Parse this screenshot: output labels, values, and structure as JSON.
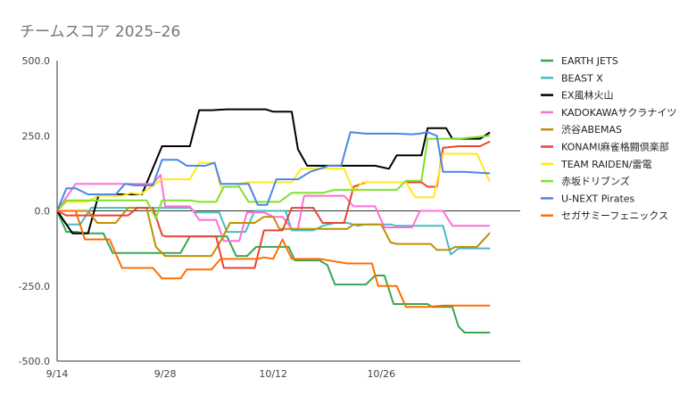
{
  "chart_data": {
    "type": "line",
    "title": "チームスコア 2025–26",
    "xlabel": "",
    "ylabel": "",
    "x_ticks": [
      "9/14",
      "9/28",
      "10/12",
      "10/26"
    ],
    "x_range": [
      0,
      30
    ],
    "ylim": [
      -500,
      500
    ],
    "y_ticks": [
      "500.0",
      "250.0",
      "0.0",
      "-250.0",
      "-500.0"
    ],
    "grid": false,
    "legend_position": "right",
    "series": [
      {
        "name": "EARTH JETS",
        "color": "#34a853",
        "points": [
          [
            0,
            0
          ],
          [
            0.6,
            -70
          ],
          [
            1.2,
            -70
          ],
          [
            2,
            -75
          ],
          [
            3,
            -75
          ],
          [
            3.6,
            -140
          ],
          [
            5,
            -140
          ],
          [
            8,
            -140
          ],
          [
            8.6,
            -85
          ],
          [
            11,
            -85
          ],
          [
            11.6,
            -150
          ],
          [
            12.3,
            -150
          ],
          [
            12.9,
            -120
          ],
          [
            14,
            -120
          ],
          [
            15,
            -120
          ],
          [
            15.4,
            -165
          ],
          [
            17,
            -165
          ],
          [
            17.5,
            -180
          ],
          [
            18,
            -245
          ],
          [
            20,
            -245
          ],
          [
            20.6,
            -215
          ],
          [
            21.2,
            -215
          ],
          [
            21.8,
            -310
          ],
          [
            24,
            -310
          ],
          [
            24.3,
            -320
          ],
          [
            25,
            -320
          ],
          [
            25.6,
            -320
          ],
          [
            26,
            -385
          ],
          [
            26.4,
            -405
          ],
          [
            28,
            -405
          ]
        ]
      },
      {
        "name": "BEAST X",
        "color": "#46bdc6",
        "points": [
          [
            0,
            0
          ],
          [
            0.6,
            -45
          ],
          [
            1.5,
            -45
          ],
          [
            2.2,
            10
          ],
          [
            8.6,
            10
          ],
          [
            9,
            -5
          ],
          [
            10.5,
            -5
          ],
          [
            11,
            -70
          ],
          [
            12.2,
            -70
          ],
          [
            12.8,
            0
          ],
          [
            14.8,
            0
          ],
          [
            15.2,
            -65
          ],
          [
            16.6,
            -65
          ],
          [
            17.2,
            -50
          ],
          [
            18,
            -40
          ],
          [
            18.8,
            -40
          ],
          [
            19.5,
            -50
          ],
          [
            20,
            -45
          ],
          [
            21.6,
            -45
          ],
          [
            22,
            -50
          ],
          [
            24,
            -50
          ],
          [
            25,
            -50
          ],
          [
            25.5,
            -145
          ],
          [
            26,
            -125
          ],
          [
            28,
            -125
          ]
        ]
      },
      {
        "name": "EX風林火山",
        "color": "#000000",
        "points": [
          [
            0,
            0
          ],
          [
            1,
            -75
          ],
          [
            2,
            -75
          ],
          [
            2.7,
            55
          ],
          [
            5.5,
            55
          ],
          [
            6.8,
            215
          ],
          [
            8.6,
            215
          ],
          [
            9.2,
            335
          ],
          [
            10,
            335
          ],
          [
            11,
            338
          ],
          [
            13.5,
            338
          ],
          [
            14,
            330
          ],
          [
            15.2,
            330
          ],
          [
            15.6,
            205
          ],
          [
            16.2,
            150
          ],
          [
            19,
            150
          ],
          [
            20.6,
            150
          ],
          [
            21.5,
            140
          ],
          [
            22,
            185
          ],
          [
            23.6,
            185
          ],
          [
            24,
            275
          ],
          [
            25.2,
            275
          ],
          [
            25.6,
            240
          ],
          [
            27.4,
            240
          ],
          [
            28,
            260
          ]
        ]
      },
      {
        "name": "KADOKAWAサクラナイツ",
        "color": "#ff6fd8",
        "points": [
          [
            0,
            0
          ],
          [
            0.6,
            45
          ],
          [
            1.2,
            90
          ],
          [
            6.2,
            90
          ],
          [
            6.7,
            120
          ],
          [
            7,
            15
          ],
          [
            8.6,
            15
          ],
          [
            9.2,
            -30
          ],
          [
            10.3,
            -30
          ],
          [
            10.8,
            -100
          ],
          [
            11.8,
            -100
          ],
          [
            12.3,
            -5
          ],
          [
            13.4,
            -5
          ],
          [
            14,
            -20
          ],
          [
            14.6,
            -20
          ],
          [
            15.2,
            -60
          ],
          [
            15.6,
            -60
          ],
          [
            16,
            50
          ],
          [
            18.6,
            50
          ],
          [
            19.2,
            15
          ],
          [
            20.6,
            15
          ],
          [
            21.2,
            -55
          ],
          [
            23,
            -55
          ],
          [
            23.5,
            0
          ],
          [
            25,
            0
          ],
          [
            25.6,
            -50
          ],
          [
            28,
            -50
          ]
        ]
      },
      {
        "name": "渋谷ABEMAS",
        "color": "#bf9000",
        "points": [
          [
            0,
            0
          ],
          [
            2,
            0
          ],
          [
            2.6,
            -40
          ],
          [
            3.8,
            -40
          ],
          [
            4.6,
            10
          ],
          [
            5.8,
            10
          ],
          [
            6.4,
            -120
          ],
          [
            7,
            -150
          ],
          [
            10,
            -150
          ],
          [
            10.6,
            -100
          ],
          [
            11.2,
            -40
          ],
          [
            12.8,
            -40
          ],
          [
            13.4,
            -20
          ],
          [
            14,
            -20
          ],
          [
            14.4,
            -60
          ],
          [
            17,
            -60
          ],
          [
            18,
            -60
          ],
          [
            18.8,
            -60
          ],
          [
            19.2,
            -45
          ],
          [
            21,
            -45
          ],
          [
            21.6,
            -105
          ],
          [
            22,
            -110
          ],
          [
            24.2,
            -110
          ],
          [
            24.6,
            -130
          ],
          [
            25.4,
            -130
          ],
          [
            25.8,
            -120
          ],
          [
            27.2,
            -120
          ],
          [
            28,
            -75
          ]
        ]
      },
      {
        "name": "KONAMI麻雀格闘倶楽部",
        "color": "#ea4335",
        "points": [
          [
            0,
            0
          ],
          [
            0.6,
            -15
          ],
          [
            1.2,
            -15
          ],
          [
            2,
            -15
          ],
          [
            4.6,
            -15
          ],
          [
            5.2,
            10
          ],
          [
            6.2,
            10
          ],
          [
            6.8,
            -80
          ],
          [
            7,
            -85
          ],
          [
            10.3,
            -85
          ],
          [
            10.8,
            -190
          ],
          [
            12.8,
            -190
          ],
          [
            13.4,
            -65
          ],
          [
            14.6,
            -65
          ],
          [
            15.2,
            10
          ],
          [
            16.6,
            10
          ],
          [
            17.2,
            -40
          ],
          [
            18.6,
            -40
          ],
          [
            19.2,
            80
          ],
          [
            20,
            95
          ],
          [
            23.6,
            95
          ],
          [
            24,
            80
          ],
          [
            24.6,
            80
          ],
          [
            25,
            210
          ],
          [
            26,
            215
          ],
          [
            27.4,
            215
          ],
          [
            28,
            230
          ]
        ]
      },
      {
        "name": "TEAM RAIDEN/雷電",
        "color": "#ffe81a",
        "points": [
          [
            0,
            0
          ],
          [
            0.6,
            30
          ],
          [
            1.2,
            30
          ],
          [
            2,
            30
          ],
          [
            2.6,
            50
          ],
          [
            4.2,
            50
          ],
          [
            4.8,
            60
          ],
          [
            5.4,
            55
          ],
          [
            6.8,
            105
          ],
          [
            8.6,
            105
          ],
          [
            9.2,
            160
          ],
          [
            10.2,
            160
          ],
          [
            10.6,
            80
          ],
          [
            11.6,
            80
          ],
          [
            12.2,
            95
          ],
          [
            15.2,
            95
          ],
          [
            15.8,
            140
          ],
          [
            18.6,
            140
          ],
          [
            19.2,
            65
          ],
          [
            19.8,
            95
          ],
          [
            22.6,
            95
          ],
          [
            23.2,
            45
          ],
          [
            24.4,
            45
          ],
          [
            25,
            190
          ],
          [
            26,
            190
          ],
          [
            27.2,
            190
          ],
          [
            28,
            100
          ]
        ]
      },
      {
        "name": "赤坂ドリブンズ",
        "color": "#7ee22b",
        "points": [
          [
            0,
            0
          ],
          [
            0.6,
            35
          ],
          [
            1.2,
            35
          ],
          [
            3.8,
            35
          ],
          [
            4.4,
            35
          ],
          [
            5.8,
            35
          ],
          [
            6.4,
            -25
          ],
          [
            6.8,
            35
          ],
          [
            8.6,
            35
          ],
          [
            9.2,
            30
          ],
          [
            10.3,
            30
          ],
          [
            10.8,
            80
          ],
          [
            11.8,
            80
          ],
          [
            12.4,
            30
          ],
          [
            14.4,
            30
          ],
          [
            15.2,
            60
          ],
          [
            16,
            60
          ],
          [
            17.2,
            60
          ],
          [
            18,
            70
          ],
          [
            18.6,
            70
          ],
          [
            19.6,
            70
          ],
          [
            22,
            70
          ],
          [
            22.6,
            100
          ],
          [
            23.6,
            100
          ],
          [
            24,
            240
          ],
          [
            26,
            240
          ],
          [
            28,
            250
          ]
        ]
      },
      {
        "name": "U-NEXT Pirates",
        "color": "#4a86e8",
        "points": [
          [
            0,
            0
          ],
          [
            0.6,
            75
          ],
          [
            1.2,
            75
          ],
          [
            2,
            55
          ],
          [
            3.8,
            55
          ],
          [
            4.4,
            90
          ],
          [
            5,
            85
          ],
          [
            6.2,
            85
          ],
          [
            6.8,
            170
          ],
          [
            7.8,
            170
          ],
          [
            8.4,
            150
          ],
          [
            9.6,
            150
          ],
          [
            10.2,
            160
          ],
          [
            10.6,
            90
          ],
          [
            12.4,
            90
          ],
          [
            13,
            20
          ],
          [
            13.6,
            20
          ],
          [
            14.2,
            105
          ],
          [
            15.6,
            105
          ],
          [
            16.4,
            130
          ],
          [
            17.6,
            150
          ],
          [
            18.4,
            150
          ],
          [
            19,
            262
          ],
          [
            20,
            257
          ],
          [
            22,
            257
          ],
          [
            23,
            255
          ],
          [
            23.5,
            257
          ],
          [
            24,
            262
          ],
          [
            24.6,
            250
          ],
          [
            25,
            130
          ],
          [
            26.4,
            130
          ],
          [
            28,
            125
          ]
        ]
      },
      {
        "name": "セガサミーフェニックス",
        "color": "#ff6d01",
        "points": [
          [
            0,
            0
          ],
          [
            1.2,
            0
          ],
          [
            1.8,
            -95
          ],
          [
            3.4,
            -95
          ],
          [
            4.2,
            -190
          ],
          [
            6.2,
            -190
          ],
          [
            6.8,
            -225
          ],
          [
            8,
            -225
          ],
          [
            8.4,
            -195
          ],
          [
            10,
            -195
          ],
          [
            10.6,
            -160
          ],
          [
            13,
            -160
          ],
          [
            13.4,
            -155
          ],
          [
            14,
            -160
          ],
          [
            14.6,
            -95
          ],
          [
            15.2,
            -160
          ],
          [
            17,
            -160
          ],
          [
            18.2,
            -170
          ],
          [
            18.8,
            -175
          ],
          [
            20.4,
            -175
          ],
          [
            20.8,
            -250
          ],
          [
            22,
            -250
          ],
          [
            22.6,
            -320
          ],
          [
            24,
            -320
          ],
          [
            25,
            -315
          ],
          [
            28,
            -315
          ]
        ]
      }
    ]
  }
}
